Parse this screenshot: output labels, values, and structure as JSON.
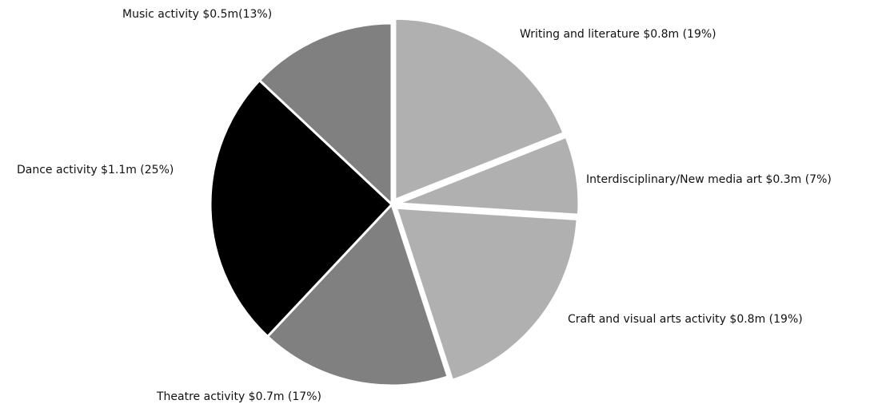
{
  "chart_data": {
    "type": "pie",
    "title": "",
    "slices": [
      {
        "name": "Writing and literature",
        "value": 0.8,
        "percent": 19,
        "label": "Writing and literature $0.8m (19%)",
        "color": "#b0b0b0",
        "exploded": true
      },
      {
        "name": "Interdisciplinary/New media art",
        "value": 0.3,
        "percent": 7,
        "label": "Interdisciplinary/New media art $0.3m (7%)",
        "color": "#b0b0b0",
        "exploded": true
      },
      {
        "name": "Craft and visual arts activity",
        "value": 0.8,
        "percent": 19,
        "label": "Craft and visual arts activity $0.8m (19%)",
        "color": "#b0b0b0",
        "exploded": true
      },
      {
        "name": "Theatre activity",
        "value": 0.7,
        "percent": 17,
        "label": "Theatre activity $0.7m (17%)",
        "color": "#808080",
        "exploded": false
      },
      {
        "name": "Dance activity",
        "value": 1.1,
        "percent": 25,
        "label": "Dance activity $1.1m (25%)",
        "color": "#000000",
        "exploded": false
      },
      {
        "name": "Music activity",
        "value": 0.5,
        "percent": 13,
        "label": "Music activity $0.5m(13%)",
        "color": "#808080",
        "exploded": false
      }
    ],
    "legend": "none"
  }
}
